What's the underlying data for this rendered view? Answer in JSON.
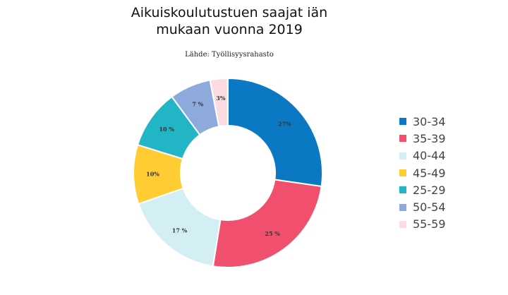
{
  "chart_data": {
    "type": "pie",
    "title_lines": [
      "Aikuiskoulutustuen saajat iän",
      "mukaan vuonna 2019"
    ],
    "subtitle": "Lähde: Työllisyysrahasto",
    "legend_position": "right",
    "slices": [
      {
        "name": "30-34",
        "value": 27,
        "label": "27%",
        "color": "#0a78c2"
      },
      {
        "name": "35-39",
        "value": 25,
        "label": "25 %",
        "color": "#f0506e"
      },
      {
        "name": "40-44",
        "value": 17,
        "label": "17 %",
        "color": "#d3eff3"
      },
      {
        "name": "45-49",
        "value": 10,
        "label": "10%",
        "color": "#ffcc33"
      },
      {
        "name": "25-29",
        "value": 10,
        "label": "10 %",
        "color": "#22b5c5"
      },
      {
        "name": "50-54",
        "value": 7,
        "label": "7 %",
        "color": "#8ea9dc"
      },
      {
        "name": "55-59",
        "value": 3,
        "label": "3%",
        "color": "#fcdce2"
      }
    ]
  }
}
